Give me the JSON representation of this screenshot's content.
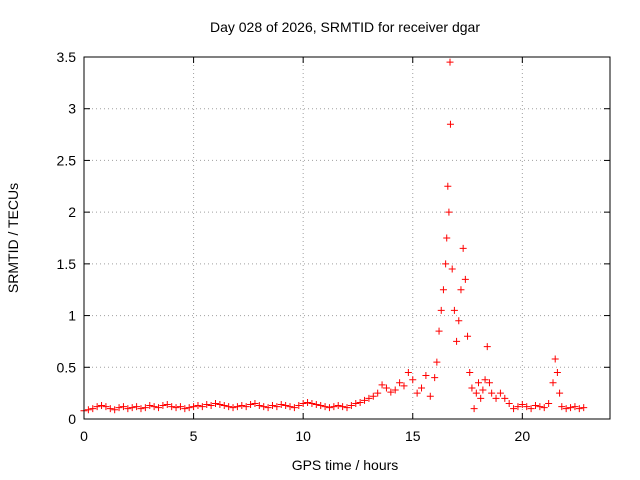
{
  "chart_data": {
    "type": "scatter",
    "title": "Day 028 of 2026, SRMTID for receiver dgar",
    "xlabel": "GPS time / hours",
    "ylabel": "SRMTID / TECUs",
    "xlim": [
      0,
      24
    ],
    "ylim": [
      0,
      3.5
    ],
    "xticks": [
      0,
      5,
      10,
      15,
      20
    ],
    "yticks": [
      0,
      0.5,
      1,
      1.5,
      2,
      2.5,
      3,
      3.5
    ],
    "grid": true,
    "marker": "+",
    "colors": {
      "series": "#ff0000",
      "grid": "#a0a0a0",
      "axis": "#000000"
    },
    "series": [
      {
        "name": "SRMTID",
        "points": [
          [
            0.0,
            0.08
          ],
          [
            0.2,
            0.09
          ],
          [
            0.4,
            0.1
          ],
          [
            0.6,
            0.12
          ],
          [
            0.8,
            0.13
          ],
          [
            1.0,
            0.12
          ],
          [
            1.2,
            0.1
          ],
          [
            1.4,
            0.09
          ],
          [
            1.6,
            0.11
          ],
          [
            1.8,
            0.12
          ],
          [
            2.0,
            0.1
          ],
          [
            2.2,
            0.11
          ],
          [
            2.4,
            0.12
          ],
          [
            2.6,
            0.1
          ],
          [
            2.8,
            0.11
          ],
          [
            3.0,
            0.13
          ],
          [
            3.2,
            0.12
          ],
          [
            3.4,
            0.11
          ],
          [
            3.6,
            0.13
          ],
          [
            3.8,
            0.14
          ],
          [
            4.0,
            0.12
          ],
          [
            4.2,
            0.11
          ],
          [
            4.4,
            0.12
          ],
          [
            4.6,
            0.1
          ],
          [
            4.8,
            0.11
          ],
          [
            5.0,
            0.12
          ],
          [
            5.2,
            0.13
          ],
          [
            5.4,
            0.12
          ],
          [
            5.6,
            0.14
          ],
          [
            5.8,
            0.13
          ],
          [
            6.0,
            0.15
          ],
          [
            6.2,
            0.14
          ],
          [
            6.4,
            0.13
          ],
          [
            6.6,
            0.12
          ],
          [
            6.8,
            0.11
          ],
          [
            7.0,
            0.12
          ],
          [
            7.2,
            0.13
          ],
          [
            7.4,
            0.12
          ],
          [
            7.6,
            0.14
          ],
          [
            7.8,
            0.15
          ],
          [
            8.0,
            0.13
          ],
          [
            8.2,
            0.12
          ],
          [
            8.4,
            0.11
          ],
          [
            8.6,
            0.13
          ],
          [
            8.8,
            0.12
          ],
          [
            9.0,
            0.14
          ],
          [
            9.2,
            0.13
          ],
          [
            9.4,
            0.12
          ],
          [
            9.6,
            0.11
          ],
          [
            9.8,
            0.13
          ],
          [
            10.0,
            0.15
          ],
          [
            10.2,
            0.16
          ],
          [
            10.4,
            0.15
          ],
          [
            10.6,
            0.14
          ],
          [
            10.8,
            0.13
          ],
          [
            11.0,
            0.12
          ],
          [
            11.2,
            0.11
          ],
          [
            11.4,
            0.12
          ],
          [
            11.6,
            0.13
          ],
          [
            11.8,
            0.12
          ],
          [
            12.0,
            0.11
          ],
          [
            12.2,
            0.13
          ],
          [
            12.4,
            0.15
          ],
          [
            12.6,
            0.16
          ],
          [
            12.8,
            0.18
          ],
          [
            13.0,
            0.2
          ],
          [
            13.2,
            0.22
          ],
          [
            13.4,
            0.25
          ],
          [
            13.6,
            0.33
          ],
          [
            13.8,
            0.3
          ],
          [
            14.0,
            0.26
          ],
          [
            14.2,
            0.28
          ],
          [
            14.4,
            0.35
          ],
          [
            14.6,
            0.32
          ],
          [
            14.8,
            0.45
          ],
          [
            15.0,
            0.38
          ],
          [
            15.2,
            0.25
          ],
          [
            15.4,
            0.3
          ],
          [
            15.6,
            0.42
          ],
          [
            15.8,
            0.22
          ],
          [
            16.0,
            0.4
          ],
          [
            16.1,
            0.55
          ],
          [
            16.2,
            0.85
          ],
          [
            16.3,
            1.05
          ],
          [
            16.4,
            1.25
          ],
          [
            16.5,
            1.5
          ],
          [
            16.55,
            1.75
          ],
          [
            16.6,
            2.25
          ],
          [
            16.65,
            2.0
          ],
          [
            16.7,
            3.45
          ],
          [
            16.72,
            2.85
          ],
          [
            16.8,
            1.45
          ],
          [
            16.9,
            1.05
          ],
          [
            17.0,
            0.75
          ],
          [
            17.1,
            0.95
          ],
          [
            17.2,
            1.25
          ],
          [
            17.3,
            1.65
          ],
          [
            17.4,
            1.35
          ],
          [
            17.5,
            0.8
          ],
          [
            17.6,
            0.45
          ],
          [
            17.7,
            0.3
          ],
          [
            17.8,
            0.1
          ],
          [
            17.9,
            0.25
          ],
          [
            18.0,
            0.35
          ],
          [
            18.1,
            0.2
          ],
          [
            18.2,
            0.28
          ],
          [
            18.3,
            0.38
          ],
          [
            18.4,
            0.7
          ],
          [
            18.5,
            0.35
          ],
          [
            18.6,
            0.25
          ],
          [
            18.8,
            0.2
          ],
          [
            19.0,
            0.25
          ],
          [
            19.2,
            0.2
          ],
          [
            19.4,
            0.15
          ],
          [
            19.6,
            0.1
          ],
          [
            19.8,
            0.12
          ],
          [
            20.0,
            0.14
          ],
          [
            20.2,
            0.12
          ],
          [
            20.4,
            0.1
          ],
          [
            20.6,
            0.13
          ],
          [
            20.8,
            0.12
          ],
          [
            21.0,
            0.11
          ],
          [
            21.2,
            0.15
          ],
          [
            21.4,
            0.35
          ],
          [
            21.5,
            0.58
          ],
          [
            21.6,
            0.45
          ],
          [
            21.7,
            0.25
          ],
          [
            21.8,
            0.12
          ],
          [
            22.0,
            0.1
          ],
          [
            22.2,
            0.11
          ],
          [
            22.4,
            0.12
          ],
          [
            22.6,
            0.1
          ],
          [
            22.8,
            0.11
          ]
        ]
      }
    ]
  }
}
